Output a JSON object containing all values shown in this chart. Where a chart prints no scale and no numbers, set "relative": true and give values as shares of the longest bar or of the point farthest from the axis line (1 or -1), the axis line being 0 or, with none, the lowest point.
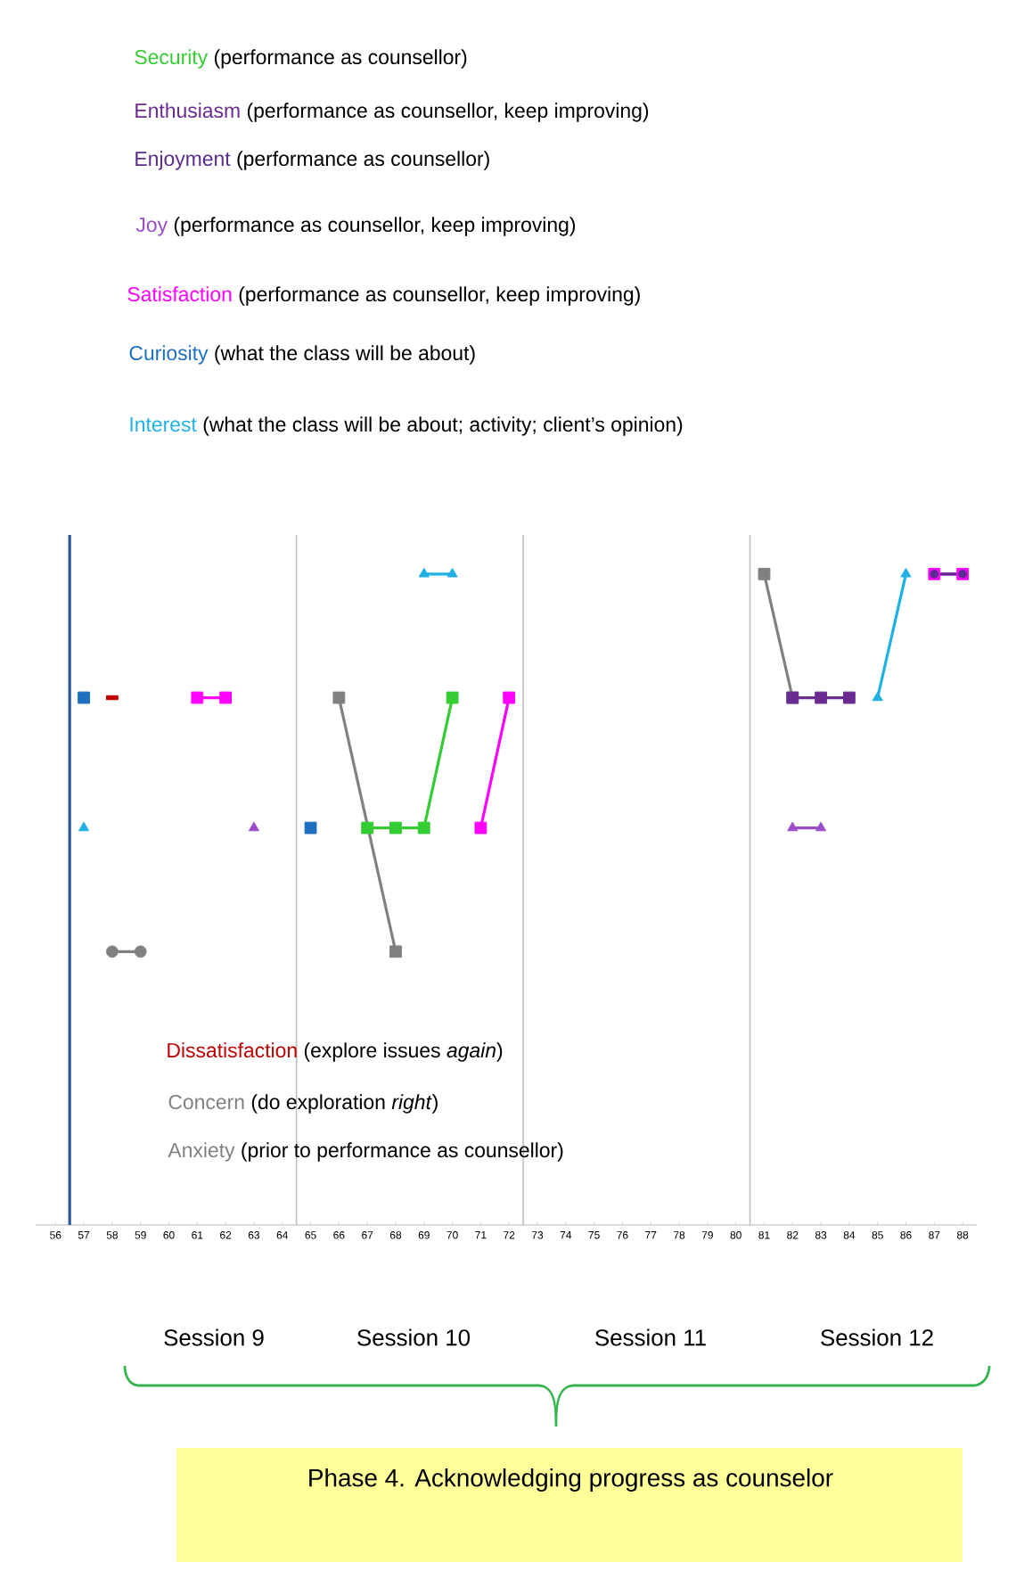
{
  "chart_data": {
    "type": "line",
    "relative": true,
    "legend": "top",
    "grid": false,
    "xlim": [
      55.3,
      88.5
    ],
    "xticks": [
      56,
      57,
      58,
      59,
      60,
      61,
      62,
      63,
      64,
      65,
      66,
      67,
      68,
      69,
      70,
      71,
      72,
      73,
      74,
      75,
      76,
      77,
      78,
      79,
      80,
      81,
      82,
      83,
      84,
      85,
      86,
      87,
      88
    ],
    "series": [
      {
        "name": "Security",
        "color": "#33cc33",
        "marker": "square",
        "x": [
          67,
          68,
          69,
          70
        ],
        "values": [
          0.61,
          0.61,
          0.61,
          0.81
        ]
      },
      {
        "name": "Enthusiasm",
        "color": "#6a2c91",
        "marker": "square",
        "x": [
          82,
          83,
          84
        ],
        "values": [
          0.81,
          0.81,
          0.81
        ]
      },
      {
        "name": "Enjoyment",
        "color": "#5b2c8f",
        "marker": "circle",
        "x": [
          87,
          88
        ],
        "values": [
          1,
          1
        ]
      },
      {
        "name": "Joy",
        "color": "#9b4dca",
        "marker": "triangle",
        "x": [
          63,
          64,
          82,
          83
        ],
        "values": [
          0.61,
          null,
          0.61,
          0.61
        ]
      },
      {
        "name": "Satisfaction",
        "color": "#ff00ff",
        "marker": "square",
        "x": [
          61,
          62,
          63,
          71,
          72,
          73,
          87,
          88
        ],
        "values": [
          0.81,
          0.81,
          null,
          0.61,
          0.81,
          null,
          1,
          1
        ]
      },
      {
        "name": "Curiosity",
        "type": "scatter",
        "color": "#1f6fbf",
        "marker": "square",
        "x": [
          57,
          58,
          65
        ],
        "values": [
          0.81,
          null,
          0.61
        ]
      },
      {
        "name": "Interest",
        "color": "#1fb0e6",
        "marker": "triangle",
        "x": [
          57,
          58,
          69,
          70,
          71,
          85,
          86
        ],
        "values": [
          0.61,
          null,
          1,
          1,
          null,
          0.81,
          1
        ]
      },
      {
        "name": "Dissatisfaction",
        "type": "scatter",
        "color": "#c00000",
        "marker": "square",
        "x": [
          58
        ],
        "values": [
          0.81
        ]
      },
      {
        "name": "Concern",
        "color": "#808080",
        "marker": "square",
        "x": [
          66,
          68,
          69,
          81,
          82
        ],
        "values": [
          0.81,
          0.42,
          null,
          1,
          0.81
        ]
      },
      {
        "name": "Anxiety",
        "color": "#808080",
        "marker": "circle",
        "x": [
          58,
          59
        ],
        "values": [
          0.42,
          0.42
        ]
      }
    ],
    "ref_lines": [
      {
        "axis": "x",
        "value": 56.5,
        "color": "#2f5597"
      },
      {
        "axis": "x",
        "value": 64.5,
        "color": "#bfbfbf"
      },
      {
        "axis": "x",
        "value": 72.5,
        "color": "#bfbfbf"
      },
      {
        "axis": "x",
        "value": 80.5,
        "color": "#bfbfbf"
      }
    ],
    "annotations": [
      "(performance as counsellor)",
      "(performance as counsellor, keep improving)",
      "(performance as counsellor)",
      "(performance as counsellor, keep improving)",
      "(performance as counsellor, keep improving)",
      "(what the class will be about)",
      "(what the class will be about; activity; client’s opinion)",
      "(explore issues *again*)",
      "(do exploration *right*)",
      "(prior to performance as counsellor)",
      "Session 9",
      "Session 10",
      "Session 11",
      "Session 12",
      "Phase 4. Acknowledging progress as counselor"
    ]
  }
}
